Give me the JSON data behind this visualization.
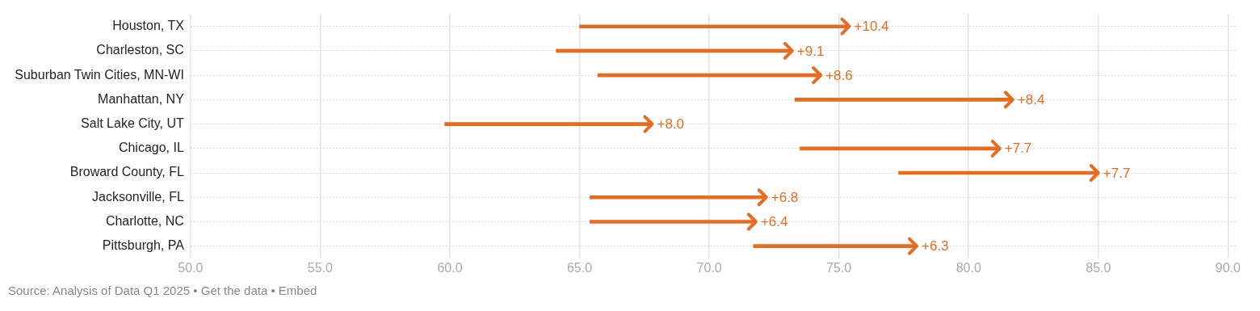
{
  "chart_data": {
    "type": "bar",
    "orientation": "horizontal",
    "categories": [
      "Houston, TX",
      "Charleston, SC",
      "Suburban Twin Cities, MN-WI",
      "Manhattan, NY",
      "Salt Lake City, UT",
      "Chicago, IL",
      "Broward County, FL",
      "Jacksonville, FL",
      "Charlotte, NC",
      "Pittsburgh, PA"
    ],
    "base": [
      65.0,
      64.1,
      65.7,
      73.3,
      59.8,
      73.5,
      77.3,
      65.4,
      65.4,
      71.7
    ],
    "values": [
      10.4,
      9.1,
      8.6,
      8.4,
      8.0,
      7.7,
      7.7,
      6.8,
      6.4,
      6.3
    ],
    "value_labels": [
      "+10.4",
      "+9.1",
      "+8.6",
      "+8.4",
      "+8.0",
      "+7.7",
      "+7.7",
      "+6.8",
      "+6.4",
      "+6.3"
    ],
    "color": "#ea6b1e",
    "xlim": [
      50,
      90.3
    ],
    "xticks": [
      {
        "value": 50,
        "label": "50.0"
      },
      {
        "value": 55,
        "label": "55.0"
      },
      {
        "value": 60,
        "label": "60.0"
      },
      {
        "value": 65,
        "label": "65.0"
      },
      {
        "value": 70,
        "label": "70.0"
      },
      {
        "value": 75,
        "label": "75.0"
      },
      {
        "value": 80,
        "label": "80.0"
      },
      {
        "value": 85,
        "label": "85.0"
      },
      {
        "value": 90,
        "label": "90.0"
      }
    ],
    "grid": true,
    "annotations": [
      "Source: Analysis of Data Q1 2025 • Get the data • Embed"
    ]
  }
}
